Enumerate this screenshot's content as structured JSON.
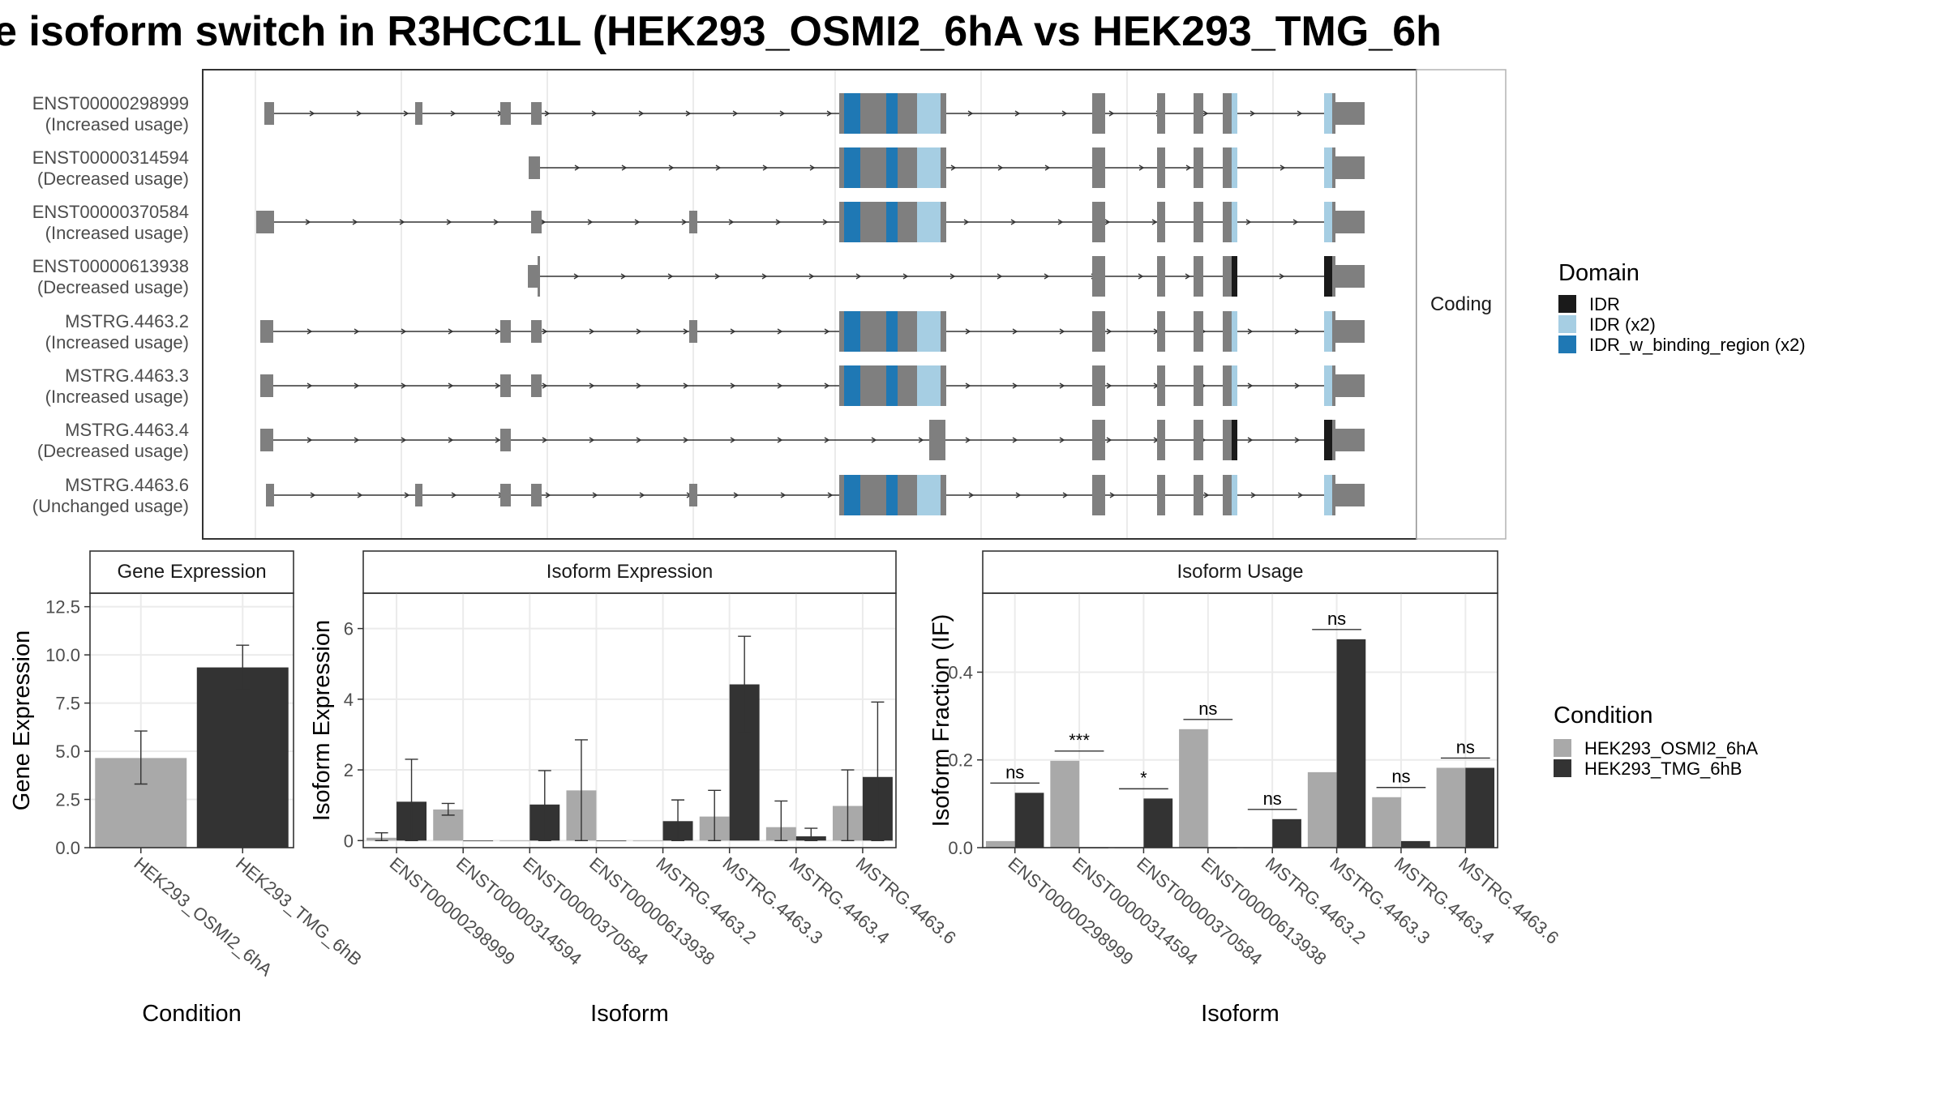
{
  "title": "e isoform switch in R3HCC1L (HEK293_OSMI2_6hA vs HEK293_TMG_6h",
  "transcripts": {
    "panel_label": "Coding",
    "items": [
      {
        "id": "ENST00000298999",
        "usage": "(Increased usage)"
      },
      {
        "id": "ENST00000314594",
        "usage": "(Decreased usage)"
      },
      {
        "id": "ENST00000370584",
        "usage": "(Increased usage)"
      },
      {
        "id": "ENST00000613938",
        "usage": "(Decreased usage)"
      },
      {
        "id": "MSTRG.4463.2",
        "usage": "(Increased usage)"
      },
      {
        "id": "MSTRG.4463.3",
        "usage": "(Increased usage)"
      },
      {
        "id": "MSTRG.4463.4",
        "usage": "(Decreased usage)"
      },
      {
        "id": "MSTRG.4463.6",
        "usage": "(Unchanged usage)"
      }
    ]
  },
  "domain_legend": {
    "title": "Domain",
    "items": [
      {
        "label": "IDR",
        "color": "#1a1a1a"
      },
      {
        "label": "IDR (x2)",
        "color": "#a6cee3"
      },
      {
        "label": "IDR_w_binding_region (x2)",
        "color": "#1f78b4"
      }
    ]
  },
  "condition_legend": {
    "title": "Condition",
    "items": [
      {
        "label": "HEK293_OSMI2_6hA",
        "color": "#a9a9a9"
      },
      {
        "label": "HEK293_TMG_6hB",
        "color": "#333333"
      }
    ]
  },
  "chart_data": [
    {
      "type": "bar",
      "strip": "Gene Expression",
      "xlabel": "Condition",
      "ylabel": "Gene Expression",
      "ylim": [
        0,
        13.2
      ],
      "yticks": [
        "0.0",
        "2.5",
        "5.0",
        "7.5",
        "10.0",
        "12.5"
      ],
      "categories": [
        "HEK293_OSMI2_6hA",
        "HEK293_TMG_6hB"
      ],
      "values": [
        4.65,
        9.35
      ],
      "error_low": [
        3.3,
        8.2
      ],
      "error_high": [
        6.05,
        10.5
      ]
    },
    {
      "type": "bar",
      "strip": "Isoform Expression",
      "xlabel": "Isoform",
      "ylabel": "Isoform Expression",
      "ylim": [
        -0.2,
        7.0
      ],
      "yticks": [
        "0",
        "2",
        "4",
        "6"
      ],
      "categories": [
        "ENST00000298999",
        "ENST00000314594",
        "ENST00000370584",
        "ENST00000613938",
        "MSTRG.4463.2",
        "MSTRG.4463.3",
        "MSTRG.4463.4",
        "MSTRG.4463.6"
      ],
      "series": [
        {
          "name": "HEK293_OSMI2_6hA",
          "values": [
            0.08,
            0.88,
            0.0,
            1.42,
            0.0,
            0.68,
            0.38,
            0.98
          ],
          "error_low": [
            0.0,
            0.72,
            0.0,
            0.0,
            0.0,
            0.0,
            0.0,
            0.0
          ],
          "error_high": [
            0.22,
            1.05,
            0.0,
            2.85,
            0.0,
            1.42,
            1.12,
            2.0
          ]
        },
        {
          "name": "HEK293_TMG_6hB",
          "values": [
            1.1,
            0.0,
            1.02,
            0.0,
            0.55,
            4.42,
            0.12,
            1.8
          ],
          "error_low": [
            0.0,
            0.0,
            0.0,
            0.0,
            0.0,
            3.05,
            0.0,
            0.0
          ],
          "error_high": [
            2.3,
            0.0,
            1.98,
            0.0,
            1.15,
            5.78,
            0.35,
            3.92
          ]
        }
      ]
    },
    {
      "type": "bar",
      "strip": "Isoform Usage",
      "xlabel": "Isoform",
      "ylabel": "Isoform Fraction (IF)",
      "ylim": [
        0,
        0.58
      ],
      "yticks": [
        "0.0",
        "0.2",
        "0.4"
      ],
      "categories": [
        "ENST00000298999",
        "ENST00000314594",
        "ENST00000370584",
        "ENST00000613938",
        "MSTRG.4463.2",
        "MSTRG.4463.3",
        "MSTRG.4463.4",
        "MSTRG.4463.6"
      ],
      "series": [
        {
          "name": "HEK293_OSMI2_6hA",
          "values": [
            0.015,
            0.198,
            0.0,
            0.27,
            0.0,
            0.172,
            0.115,
            0.182
          ]
        },
        {
          "name": "HEK293_TMG_6hB",
          "values": [
            0.125,
            0.0,
            0.112,
            0.0,
            0.065,
            0.475,
            0.015,
            0.182
          ]
        }
      ],
      "significance": [
        "ns",
        "***",
        "*",
        "ns",
        "ns",
        "ns",
        "ns",
        "ns"
      ]
    }
  ]
}
